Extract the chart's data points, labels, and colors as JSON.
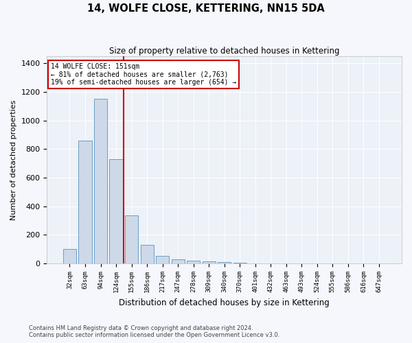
{
  "title": "14, WOLFE CLOSE, KETTERING, NN15 5DA",
  "subtitle": "Size of property relative to detached houses in Kettering",
  "xlabel": "Distribution of detached houses by size in Kettering",
  "ylabel": "Number of detached properties",
  "categories": [
    "32sqm",
    "63sqm",
    "94sqm",
    "124sqm",
    "155sqm",
    "186sqm",
    "217sqm",
    "247sqm",
    "278sqm",
    "309sqm",
    "340sqm",
    "370sqm",
    "401sqm",
    "432sqm",
    "463sqm",
    "493sqm",
    "524sqm",
    "555sqm",
    "586sqm",
    "616sqm",
    "647sqm"
  ],
  "values": [
    100,
    860,
    1150,
    730,
    335,
    130,
    55,
    30,
    20,
    15,
    10,
    6,
    0,
    0,
    0,
    0,
    0,
    0,
    0,
    0,
    0
  ],
  "bar_color": "#cdd9e8",
  "bar_edge_color": "#6a9ec4",
  "vline_color": "#cc0000",
  "annotation_box_edge_color": "#cc0000",
  "annotation_line1": "14 WOLFE CLOSE: 151sqm",
  "annotation_line2": "← 81% of detached houses are smaller (2,763)",
  "annotation_line3": "19% of semi-detached houses are larger (654) →",
  "fig_background_color": "#f5f7fc",
  "ax_background_color": "#edf1f8",
  "grid_color": "#ffffff",
  "ylim": [
    0,
    1450
  ],
  "yticks": [
    0,
    200,
    400,
    600,
    800,
    1000,
    1200,
    1400
  ],
  "footnote1": "Contains HM Land Registry data © Crown copyright and database right 2024.",
  "footnote2": "Contains public sector information licensed under the Open Government Licence v3.0."
}
